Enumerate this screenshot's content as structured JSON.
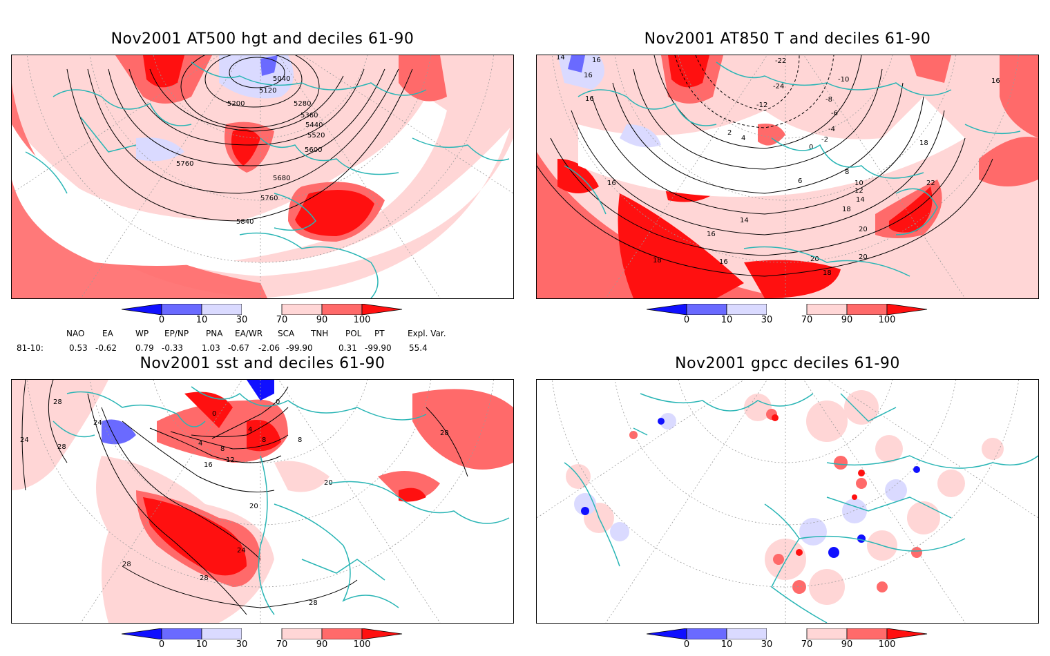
{
  "panels": [
    {
      "title": "Nov2001 AT500 hgt and deciles 61-90",
      "contour_labels": [
        "5040",
        "5120",
        "5200",
        "5280",
        "5360",
        "5440",
        "5520",
        "5600",
        "5680",
        "5760",
        "5760",
        "5840"
      ]
    },
    {
      "title": "Nov2001 AT850 T and deciles 61-90",
      "contour_labels": [
        "14",
        "16",
        "16",
        "16",
        "-22",
        "-24",
        "-12",
        "-10",
        "-8",
        "-6",
        "-4",
        "-2",
        "0",
        "2",
        "4",
        "6",
        "8",
        "10",
        "12",
        "14",
        "16",
        "18",
        "18",
        "20",
        "22",
        "14",
        "16",
        "18",
        "16",
        "20",
        "20",
        "18",
        "16"
      ]
    },
    {
      "title": "Nov2001 sst and deciles 61-90",
      "contour_labels": [
        "28",
        "24",
        "24",
        "28",
        "0",
        "0",
        "4",
        "8",
        "12",
        "16",
        "4",
        "8",
        "20",
        "24",
        "28",
        "28",
        "20",
        "28",
        "28",
        "8"
      ]
    },
    {
      "title": "Nov2001 gpcc deciles 61-90",
      "contour_labels": []
    }
  ],
  "colorbar": {
    "labels": [
      "0",
      "10",
      "30",
      "70",
      "90",
      "100"
    ],
    "colors": [
      "#1010ff",
      "#6a6aff",
      "#dadaff",
      "#ffffff",
      "#ffd6d6",
      "#ff6a6a",
      "#ff1010"
    ]
  },
  "indices": {
    "header": [
      "NAO",
      "EA",
      "WP",
      "EP/NP",
      "PNA",
      "EA/WR",
      "SCA",
      "TNH",
      "POL",
      "PT",
      "Expl. Var."
    ],
    "row_label": "81-10:",
    "values": [
      "0.53",
      "-0.62",
      "0.79",
      "-0.33",
      "1.03",
      "-0.67",
      "-2.06",
      "-99.90",
      "0.31",
      "-99.90",
      "55.4"
    ]
  },
  "colors": {
    "coast": "#29b5b5",
    "grid": "#9a9a9a",
    "contour": "#000000"
  }
}
